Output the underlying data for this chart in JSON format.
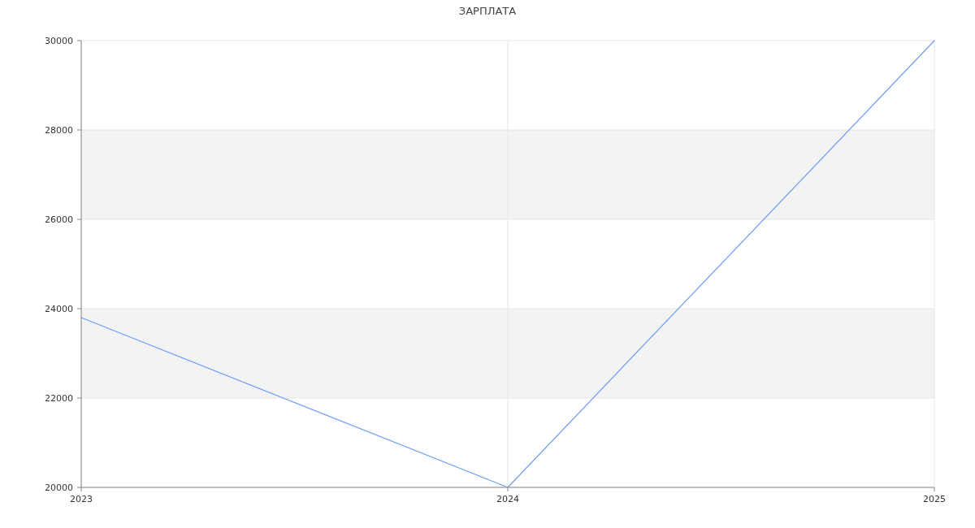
{
  "chart_data": {
    "type": "line",
    "title": "ЗАРПЛАТА",
    "categories": [
      "2023",
      "2024",
      "2025"
    ],
    "series": [
      {
        "color": "#6b9bf5",
        "values": [
          23800,
          20000,
          30000
        ]
      }
    ],
    "ylim": [
      20000,
      30000
    ],
    "yticks": [
      20000,
      22000,
      24000,
      26000,
      28000,
      30000
    ],
    "grid": true,
    "marker": "none",
    "line_style": "solid"
  }
}
